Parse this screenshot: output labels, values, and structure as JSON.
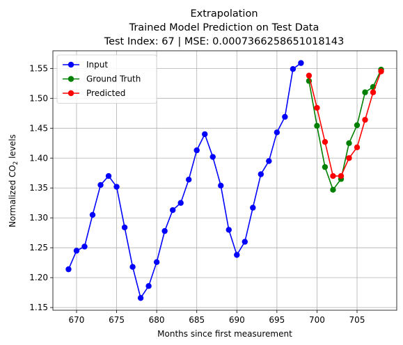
{
  "chart_data": {
    "type": "line",
    "title_lines": [
      "Extrapolation",
      "Trained Model Prediction on Test Data",
      "Test Index: 67 | MSE: 0.0007366258651018143"
    ],
    "xlabel": "Months since first measurement",
    "ylabel_prefix": "Normalized CO",
    "ylabel_sub": "2",
    "ylabel_suffix": " levels",
    "xlim": [
      667.05,
      709.95
    ],
    "ylim": [
      1.1455,
      1.5795
    ],
    "xticks": [
      670,
      675,
      680,
      685,
      690,
      695,
      700,
      705
    ],
    "yticks": [
      1.15,
      1.2,
      1.25,
      1.3,
      1.35,
      1.4,
      1.45,
      1.5,
      1.55
    ],
    "grid": true,
    "legend_position": "top-left",
    "series": [
      {
        "name": "Input",
        "color": "#0000ff",
        "x": [
          669,
          670,
          671,
          672,
          673,
          674,
          675,
          676,
          677,
          678,
          679,
          680,
          681,
          682,
          683,
          684,
          685,
          686,
          687,
          688,
          689,
          690,
          691,
          692,
          693,
          694,
          695,
          696,
          697,
          698
        ],
        "y": [
          1.214,
          1.245,
          1.252,
          1.305,
          1.355,
          1.37,
          1.352,
          1.284,
          1.218,
          1.166,
          1.186,
          1.226,
          1.278,
          1.313,
          1.325,
          1.364,
          1.413,
          1.44,
          1.402,
          1.354,
          1.28,
          1.238,
          1.26,
          1.317,
          1.373,
          1.395,
          1.443,
          1.469,
          1.549,
          1.559
        ]
      },
      {
        "name": "Ground Truth",
        "color": "#008000",
        "x": [
          699,
          700,
          701,
          702,
          703,
          704,
          705,
          706,
          707,
          708
        ],
        "y": [
          1.529,
          1.454,
          1.385,
          1.347,
          1.365,
          1.425,
          1.455,
          1.51,
          1.519,
          1.548
        ]
      },
      {
        "name": "Predicted",
        "color": "#ff0000",
        "x": [
          699,
          700,
          701,
          702,
          703,
          704,
          705,
          706,
          707,
          708
        ],
        "y": [
          1.538,
          1.484,
          1.427,
          1.37,
          1.37,
          1.4,
          1.418,
          1.464,
          1.51,
          1.545
        ]
      }
    ]
  }
}
